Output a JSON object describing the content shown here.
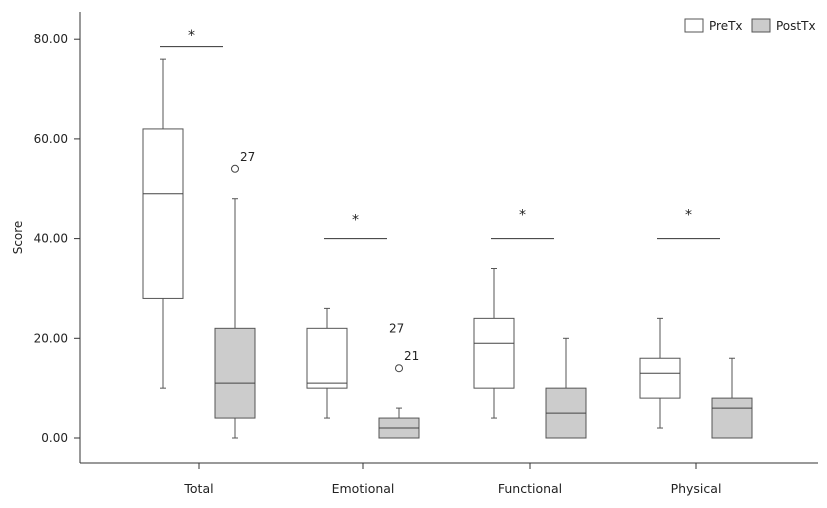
{
  "chart_data": {
    "type": "boxplot",
    "ylabel": "Score",
    "ylim": [
      -5,
      85
    ],
    "yticks": [
      {
        "value": 0,
        "label": "0.00"
      },
      {
        "value": 20,
        "label": "20.00"
      },
      {
        "value": 40,
        "label": "40.00"
      },
      {
        "value": 60,
        "label": "60.00"
      },
      {
        "value": 80,
        "label": "80.00"
      }
    ],
    "categories": [
      "Total",
      "Emotional",
      "Functional",
      "Physical"
    ],
    "legend_position": "top-right",
    "series": [
      {
        "name": "PreTx",
        "color": "#ffffff",
        "boxes": [
          {
            "whisker_low": 10,
            "q1": 28,
            "median": 49,
            "q3": 62,
            "whisker_high": 76,
            "outliers": []
          },
          {
            "whisker_low": 4,
            "q1": 10,
            "median": 11,
            "q3": 22,
            "whisker_high": 26,
            "outliers": []
          },
          {
            "whisker_low": 4,
            "q1": 10,
            "median": 19,
            "q3": 24,
            "whisker_high": 34,
            "outliers": []
          },
          {
            "whisker_low": 2,
            "q1": 8,
            "median": 13,
            "q3": 16,
            "whisker_high": 24,
            "outliers": []
          }
        ]
      },
      {
        "name": "PostTx",
        "color": "#cccccc",
        "boxes": [
          {
            "whisker_low": 0,
            "q1": 4,
            "median": 11,
            "q3": 22,
            "whisker_high": 48,
            "outliers": [
              {
                "value": 54,
                "label": "27"
              }
            ]
          },
          {
            "whisker_low": 0,
            "q1": 0,
            "median": 2,
            "q3": 4,
            "whisker_high": 6,
            "outliers": [
              {
                "value": 14,
                "label": "21"
              }
            ]
          },
          {
            "whisker_low": 0,
            "q1": 0,
            "median": 5,
            "q3": 10,
            "whisker_high": 20,
            "outliers": []
          },
          {
            "whisker_low": 0,
            "q1": 0,
            "median": 6,
            "q3": 8,
            "whisker_high": 16,
            "outliers": []
          }
        ]
      }
    ],
    "annotations": [
      {
        "text": "27",
        "x_category": "Emotional",
        "series": "PostTx",
        "y": 22
      },
      {
        "text": "*",
        "category": "Total",
        "line_y": 78.5,
        "star_y": 81
      },
      {
        "text": "*",
        "category": "Emotional",
        "line_y": 40,
        "star_y": 44
      },
      {
        "text": "*",
        "category": "Functional",
        "line_y": 40,
        "star_y": 45
      },
      {
        "text": "*",
        "category": "Physical",
        "line_y": 40,
        "star_y": 45
      }
    ]
  }
}
